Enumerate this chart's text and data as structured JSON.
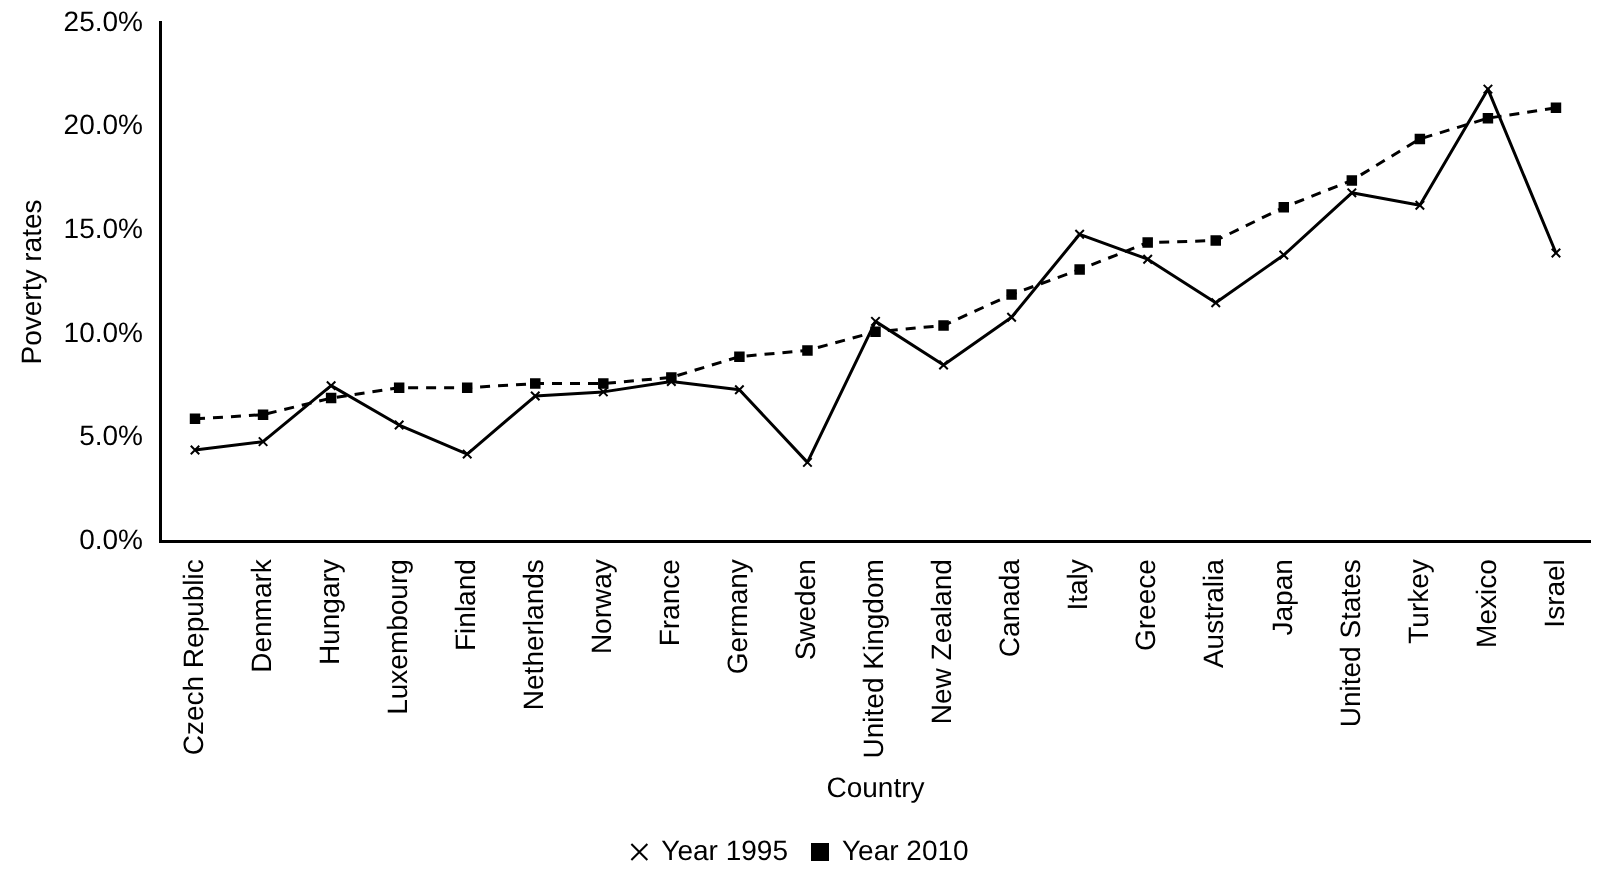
{
  "chart_data": {
    "type": "line",
    "xlabel": "Country",
    "ylabel": "Poverty rates",
    "categories": [
      "Czech Republic",
      "Denmark",
      "Hungary",
      "Luxembourg",
      "Finland",
      "Netherlands",
      "Norway",
      "France",
      "Germany",
      "Sweden",
      "United Kingdom",
      "New Zealand",
      "Canada",
      "Italy",
      "Greece",
      "Australia",
      "Japan",
      "United States",
      "Turkey",
      "Mexico",
      "Israel"
    ],
    "series": [
      {
        "name": "Year 1995",
        "color": "#000000",
        "marker": "cross",
        "line_style": "solid",
        "values": [
          4.4,
          4.8,
          7.5,
          5.6,
          4.2,
          7.0,
          7.2,
          7.7,
          7.3,
          3.8,
          10.6,
          8.5,
          10.8,
          14.8,
          13.6,
          11.5,
          13.8,
          16.8,
          16.2,
          21.8,
          13.9
        ]
      },
      {
        "name": "Year 2010",
        "color": "#000000",
        "marker": "square",
        "line_style": "dashed",
        "values": [
          5.9,
          6.1,
          6.9,
          7.4,
          7.4,
          7.6,
          7.6,
          7.9,
          8.9,
          9.2,
          10.1,
          10.4,
          11.9,
          13.1,
          14.4,
          14.5,
          16.1,
          17.4,
          19.4,
          20.4,
          20.9
        ]
      }
    ],
    "ylim": [
      0,
      25
    ],
    "yticks": [
      {
        "value": 0,
        "label": "0.0%"
      },
      {
        "value": 5,
        "label": "5.0%"
      },
      {
        "value": 10,
        "label": "10.0%"
      },
      {
        "value": 15,
        "label": "15.0%"
      },
      {
        "value": 20,
        "label": "20.0%"
      },
      {
        "value": 25,
        "label": "25.0%"
      }
    ],
    "grid": false,
    "legend": "bottom"
  }
}
